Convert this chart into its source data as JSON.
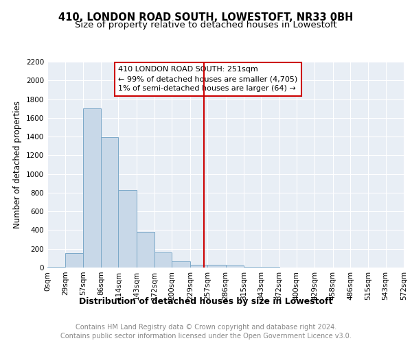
{
  "title": "410, LONDON ROAD SOUTH, LOWESTOFT, NR33 0BH",
  "subtitle": "Size of property relative to detached houses in Lowestoft",
  "xlabel": "Distribution of detached houses by size in Lowestoft",
  "ylabel": "Number of detached properties",
  "bar_edges": [
    0,
    29,
    57,
    86,
    114,
    143,
    172,
    200,
    229,
    257,
    286,
    315,
    343,
    372,
    400,
    429,
    458,
    486,
    515,
    543,
    572
  ],
  "bar_heights": [
    10,
    155,
    1700,
    1390,
    830,
    385,
    165,
    65,
    30,
    30,
    25,
    10,
    5,
    0,
    0,
    0,
    0,
    0,
    0,
    0
  ],
  "bar_color": "#c8d8e8",
  "bar_edge_color": "#7ba8c8",
  "vline_x": 251,
  "vline_color": "#cc0000",
  "annotation_title": "410 LONDON ROAD SOUTH: 251sqm",
  "annotation_line1": "← 99% of detached houses are smaller (4,705)",
  "annotation_line2": "1% of semi-detached houses are larger (64) →",
  "annotation_box_edge": "#cc0000",
  "footer1": "Contains HM Land Registry data © Crown copyright and database right 2024.",
  "footer2": "Contains public sector information licensed under the Open Government Licence v3.0.",
  "title_fontsize": 10.5,
  "subtitle_fontsize": 9.5,
  "ylabel_fontsize": 8.5,
  "xlabel_fontsize": 9,
  "tick_fontsize": 7.5,
  "annotation_fontsize": 8,
  "footer_fontsize": 7,
  "ylim": [
    0,
    2200
  ],
  "yticks": [
    0,
    200,
    400,
    600,
    800,
    1000,
    1200,
    1400,
    1600,
    1800,
    2000,
    2200
  ],
  "xtick_labels": [
    "0sqm",
    "29sqm",
    "57sqm",
    "86sqm",
    "114sqm",
    "143sqm",
    "172sqm",
    "200sqm",
    "229sqm",
    "257sqm",
    "286sqm",
    "315sqm",
    "343sqm",
    "372sqm",
    "400sqm",
    "429sqm",
    "458sqm",
    "486sqm",
    "515sqm",
    "543sqm",
    "572sqm"
  ],
  "bg_color": "#e8eef5",
  "fig_bg_color": "#ffffff"
}
